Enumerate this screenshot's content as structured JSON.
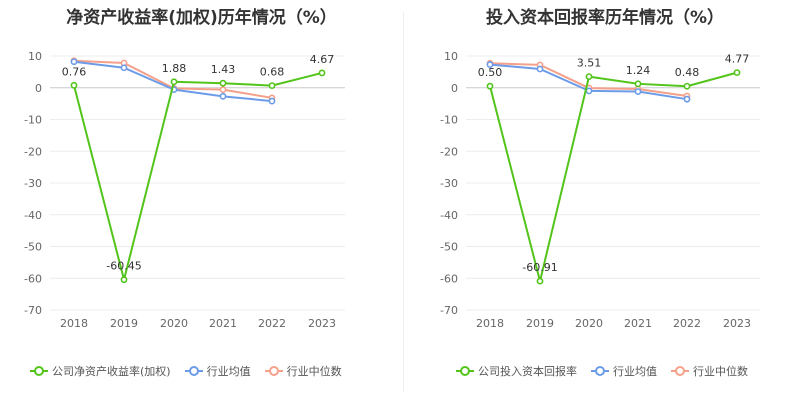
{
  "chart_data": [
    {
      "type": "line",
      "title": "净资产收益率(加权)历年情况（%）",
      "categories": [
        "2018",
        "2019",
        "2020",
        "2021",
        "2022",
        "2023"
      ],
      "ylim": [
        -70,
        10
      ],
      "yticks": [
        10,
        0,
        -10,
        -20,
        -30,
        -40,
        -50,
        -60,
        -70
      ],
      "series": [
        {
          "name": "公司净资产收益率(加权)",
          "color": "#52c41a",
          "values": [
            0.76,
            -60.45,
            1.88,
            1.43,
            0.68,
            4.67
          ],
          "labels": [
            "0.76",
            "-60.45",
            "1.88",
            "1.43",
            "0.68",
            "4.67"
          ]
        },
        {
          "name": "行业均值",
          "color": "#6c9ce8",
          "values": [
            8.2,
            6.3,
            -0.6,
            -2.7,
            -4.2,
            null
          ]
        },
        {
          "name": "行业中位数",
          "color": "#f4a08a",
          "values": [
            8.5,
            7.8,
            -0.2,
            -0.6,
            -3.2,
            null
          ]
        }
      ]
    },
    {
      "type": "line",
      "title": "投入资本回报率历年情况（%）",
      "categories": [
        "2018",
        "2019",
        "2020",
        "2021",
        "2022",
        "2023"
      ],
      "ylim": [
        -70,
        10
      ],
      "yticks": [
        10,
        0,
        -10,
        -20,
        -30,
        -40,
        -50,
        -60,
        -70
      ],
      "series": [
        {
          "name": "公司投入资本回报率",
          "color": "#52c41a",
          "values": [
            0.5,
            -60.91,
            3.51,
            1.24,
            0.48,
            4.77
          ],
          "labels": [
            "0.50",
            "-60.91",
            "3.51",
            "1.24",
            "0.48",
            "4.77"
          ]
        },
        {
          "name": "行业均值",
          "color": "#6c9ce8",
          "values": [
            7.3,
            5.9,
            -1.0,
            -1.2,
            -3.6,
            null
          ]
        },
        {
          "name": "行业中位数",
          "color": "#f4a08a",
          "values": [
            7.7,
            7.2,
            -0.1,
            -0.4,
            -2.6,
            null
          ]
        }
      ]
    }
  ]
}
